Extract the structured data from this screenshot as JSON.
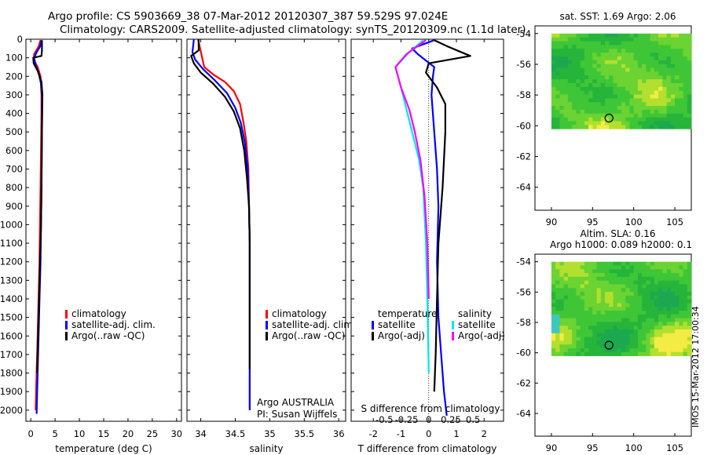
{
  "title": {
    "line1": "Argo profile: CS 5903669_38 07-Mar-2012 20120307_387 59.529S 97.024E",
    "line2": "Climatology: CARS2009. Satellite-adjusted climatology: synTS_20120309.nc (1.1d later)"
  },
  "colors": {
    "clim": "#ff0000",
    "sat": "#0000ff",
    "argo": "#000000",
    "sat_s": "#00e5ee",
    "argo_s": "#ff00ff"
  },
  "chart_data": [
    {
      "type": "line",
      "panel": "temperature",
      "xlabel": "temperature (deg C)",
      "xlim": [
        -1,
        31
      ],
      "xticks": [
        "0",
        "5",
        "10",
        "15",
        "20",
        "25",
        "30"
      ],
      "xtick_values": [
        0,
        5,
        10,
        15,
        20,
        25,
        30
      ],
      "ylim": [
        0,
        2060
      ],
      "yticks": [
        "0",
        "100",
        "200",
        "300",
        "400",
        "500",
        "600",
        "700",
        "800",
        "900",
        "1000",
        "1100",
        "1200",
        "1300",
        "1400",
        "1500",
        "1600",
        "1700",
        "1800",
        "1900",
        "2000"
      ],
      "ytick_values": [
        0,
        100,
        200,
        300,
        400,
        500,
        600,
        700,
        800,
        900,
        1000,
        1100,
        1200,
        1300,
        1400,
        1500,
        1600,
        1700,
        1800,
        1900,
        2000
      ],
      "legend": [
        "climatology",
        "satellite-adj. clim.",
        "Argo(..raw -QC)"
      ],
      "series": [
        {
          "name": "climatology",
          "color": "clim",
          "x": [
            2.0,
            1.6,
            0.7,
            0.6,
            1.4,
            2.0,
            2.2,
            2.2,
            2.1,
            2.0,
            1.9,
            1.8,
            1.6,
            1.4,
            1.2,
            1.0
          ],
          "y": [
            5,
            40,
            80,
            110,
            150,
            200,
            300,
            400,
            600,
            800,
            1000,
            1200,
            1400,
            1600,
            1800,
            2000
          ]
        },
        {
          "name": "satellite-adj. clim.",
          "color": "sat",
          "x": [
            2.2,
            1.9,
            1.2,
            0.7,
            1.0,
            1.6,
            2.1,
            2.3,
            2.3,
            2.2,
            2.1,
            2.0,
            1.8,
            1.6,
            1.4,
            1.2
          ],
          "y": [
            5,
            40,
            70,
            100,
            140,
            180,
            240,
            300,
            500,
            800,
            1000,
            1200,
            1400,
            1600,
            1800,
            2020
          ]
        },
        {
          "name": "Argo(..raw -QC)",
          "color": "argo",
          "x": [
            2.3,
            2.3,
            2.2,
            0.5,
            0.6,
            1.4,
            2.2,
            2.4,
            2.3,
            2.2,
            2.1,
            1.9,
            1.7,
            1.5,
            1.3
          ],
          "y": [
            5,
            60,
            90,
            100,
            130,
            170,
            230,
            300,
            500,
            800,
            1000,
            1200,
            1400,
            1600,
            1800
          ]
        }
      ]
    },
    {
      "type": "line",
      "panel": "salinity",
      "xlabel": "salinity",
      "xlim": [
        33.8,
        36.1
      ],
      "xticks": [
        "34",
        "34.5",
        "35",
        "35.5",
        "36"
      ],
      "xtick_values": [
        34,
        34.5,
        35,
        35.5,
        36
      ],
      "ylim": [
        0,
        2060
      ],
      "legend": [
        "climatology",
        "satellite-adj. clim.",
        "Argo(..raw -QC)"
      ],
      "annotation": [
        "Argo AUSTRALIA",
        "PI: Susan Wijffels"
      ],
      "series": [
        {
          "name": "climatology",
          "color": "clim",
          "x": [
            33.96,
            34.05,
            34.18,
            34.35,
            34.48,
            34.57,
            34.62,
            34.66,
            34.69,
            34.7,
            34.71,
            34.71,
            34.71,
            34.71,
            34.71
          ],
          "y": [
            0,
            150,
            190,
            230,
            280,
            350,
            450,
            550,
            700,
            900,
            1100,
            1300,
            1500,
            1800,
            2000
          ]
        },
        {
          "name": "satellite-adj. clim.",
          "color": "sat",
          "x": [
            33.9,
            33.88,
            33.92,
            34.03,
            34.2,
            34.38,
            34.5,
            34.58,
            34.64,
            34.68,
            34.7,
            34.71,
            34.71,
            34.71,
            34.71
          ],
          "y": [
            0,
            70,
            110,
            160,
            220,
            290,
            370,
            450,
            560,
            700,
            900,
            1100,
            1400,
            1700,
            2000
          ]
        },
        {
          "name": "Argo(..raw -QC)",
          "color": "argo",
          "x": [
            33.97,
            33.97,
            33.86,
            33.9,
            34.0,
            34.18,
            34.35,
            34.48,
            34.57,
            34.63,
            34.67,
            34.7,
            34.71,
            34.71,
            34.71
          ],
          "y": [
            0,
            60,
            90,
            130,
            180,
            240,
            310,
            390,
            480,
            600,
            750,
            900,
            1100,
            1400,
            1780
          ]
        }
      ]
    },
    {
      "type": "line",
      "panel": "difference",
      "xlabel": "T difference from climatology",
      "xlabel_top": "S difference from climatology",
      "xlim": [
        -2.8,
        2.7
      ],
      "xticks": [
        "-2",
        "-1",
        "0",
        "1",
        "2"
      ],
      "xtick_values": [
        -2,
        -1,
        0,
        1,
        2
      ],
      "s_ticks": [
        "-0.5",
        "-0.25",
        "0",
        "0.25",
        "0.5"
      ],
      "s_tick_values": [
        -1.6,
        -0.8,
        0,
        0.8,
        1.6
      ],
      "ylim": [
        0,
        2060
      ],
      "legend_t": {
        "header": "temperature",
        "items": [
          "satellite",
          "Argo(-adj)"
        ]
      },
      "legend_s": {
        "header": "salinity",
        "items": [
          "satellite",
          "Argo(-adj)"
        ]
      },
      "series": [
        {
          "name": "satellite",
          "group": "temperature",
          "color": "sat",
          "x": [
            0.2,
            -0.6,
            -0.4,
            0.2,
            0.15,
            0.1,
            0.2,
            0.3,
            0.35,
            0.3,
            0.35,
            0.45,
            0.55,
            0.65
          ],
          "y": [
            5,
            50,
            80,
            150,
            200,
            300,
            500,
            700,
            900,
            1200,
            1500,
            1700,
            1900,
            2030
          ]
        },
        {
          "name": "Argo(-adj)",
          "group": "temperature",
          "color": "argo",
          "x": [
            0.2,
            0.7,
            1.5,
            0.0,
            -0.1,
            0.3,
            0.6,
            0.6,
            0.5,
            0.35,
            0.3,
            0.25,
            0.2
          ],
          "y": [
            5,
            40,
            90,
            130,
            180,
            260,
            350,
            500,
            800,
            1100,
            1400,
            1700,
            1900
          ]
        },
        {
          "name": "satellite",
          "group": "salinity",
          "color": "sat_s",
          "x": [
            -0.2,
            -0.7,
            -1.2,
            -1.0,
            -0.8,
            -0.6,
            -0.35,
            -0.2,
            -0.1,
            -0.05,
            0.0
          ],
          "y": [
            5,
            70,
            150,
            260,
            380,
            500,
            650,
            800,
            1100,
            1400,
            1800
          ]
        },
        {
          "name": "Argo(-adj)",
          "group": "salinity",
          "color": "argo_s",
          "x": [
            -0.1,
            -0.8,
            -1.2,
            -1.0,
            -0.7,
            -0.5,
            -0.3,
            -0.15,
            -0.05,
            0.0
          ],
          "y": [
            5,
            80,
            150,
            260,
            380,
            500,
            650,
            850,
            1100,
            1400
          ]
        }
      ]
    },
    {
      "type": "heatmap",
      "panel": "sst_map",
      "title": "sat. SST: 1.69 Argo: 2.06",
      "xlim": [
        88,
        107
      ],
      "ylim": [
        -65.5,
        -53.5
      ],
      "xticks": [
        "90",
        "95",
        "100",
        "105"
      ],
      "xtick_values": [
        90,
        95,
        100,
        105
      ],
      "yticks": [
        "-54",
        "-56",
        "-58",
        "-60",
        "-62",
        "-64"
      ],
      "ytick_values": [
        -54,
        -56,
        -58,
        -60,
        -62,
        -64
      ],
      "extent": [
        90,
        107,
        -60.2,
        -54
      ],
      "marker": [
        97.0,
        -59.5
      ]
    },
    {
      "type": "heatmap",
      "panel": "sla_map",
      "title": "Altim. SLA: 0.16",
      "title2": "Argo h1000: 0.089 h2000: 0.1",
      "xlim": [
        88,
        107
      ],
      "ylim": [
        -65.5,
        -53.5
      ],
      "xticks": [
        "90",
        "95",
        "100",
        "105"
      ],
      "xtick_values": [
        90,
        95,
        100,
        105
      ],
      "yticks": [
        "-54",
        "-56",
        "-58",
        "-60",
        "-62",
        "-64"
      ],
      "ytick_values": [
        -54,
        -56,
        -58,
        -60,
        -62,
        -64
      ],
      "extent": [
        90,
        107,
        -60.2,
        -54
      ],
      "marker": [
        97.0,
        -59.5
      ]
    }
  ],
  "footer_stamp": "IMOS 15-Mar-2012 17:00:34"
}
